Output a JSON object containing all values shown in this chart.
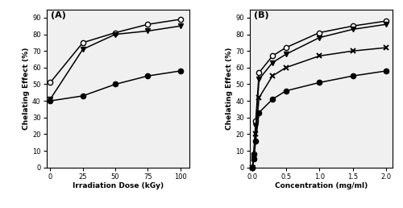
{
  "panel_A": {
    "x": [
      0,
      25,
      50,
      75,
      100
    ],
    "CS": [
      40,
      43,
      50,
      55,
      58
    ],
    "NMCS": [
      51,
      75,
      81,
      86,
      89
    ],
    "NPhCS": [
      41,
      71,
      80,
      82,
      85
    ],
    "xlabel": "Irradiation Dose (kGy)",
    "ylabel": "Chelating Effect (%)",
    "label": "(A)",
    "xlim": [
      -3,
      107
    ],
    "ylim": [
      0,
      95
    ],
    "xticks": [
      0,
      25,
      50,
      75,
      100
    ],
    "yticks": [
      0,
      10,
      20,
      30,
      40,
      50,
      60,
      70,
      80,
      90
    ]
  },
  "panel_B": {
    "x": [
      0,
      0.02,
      0.05,
      0.1,
      0.3,
      0.5,
      1.0,
      1.5,
      2.0
    ],
    "CS": [
      0,
      5,
      16,
      33,
      41,
      46,
      51,
      55,
      58
    ],
    "NMCS": [
      0,
      8,
      28,
      57,
      67,
      72,
      81,
      85,
      88
    ],
    "NPhCS": [
      0,
      7,
      25,
      53,
      63,
      68,
      78,
      83,
      86
    ],
    "AscorbicA": [
      0,
      5,
      20,
      42,
      55,
      60,
      67,
      70,
      72
    ],
    "xlabel": "Concentration (mg/ml)",
    "ylabel": "Chelating Effect (%)",
    "label": "(B)",
    "xlim": [
      -0.04,
      2.1
    ],
    "ylim": [
      0,
      95
    ],
    "xticks": [
      0.0,
      0.5,
      1.0,
      1.5,
      2.0
    ],
    "yticks": [
      0,
      10,
      20,
      30,
      40,
      50,
      60,
      70,
      80,
      90
    ]
  },
  "line_color": "#000000",
  "face_filled": "#000000",
  "face_open": "#ffffff",
  "bg_color": "#f0f0f0",
  "fig_bg": "#ffffff"
}
